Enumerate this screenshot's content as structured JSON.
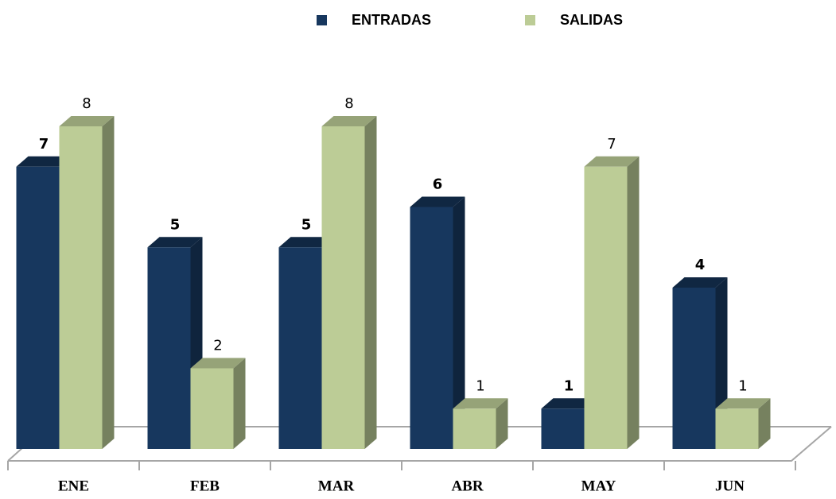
{
  "chart_data": {
    "type": "bar3d",
    "categories": [
      "ENE",
      "FEB",
      "MAR",
      "ABR",
      "MAY",
      "JUN"
    ],
    "series": [
      {
        "name": "ENTRADAS",
        "color": "#17375e",
        "values": [
          7,
          5,
          5,
          6,
          1,
          4
        ]
      },
      {
        "name": "SALIDAS",
        "color": "#bccc96",
        "values": [
          8,
          2,
          8,
          1,
          7,
          1
        ]
      }
    ],
    "ylim": [
      0,
      8
    ],
    "legend": "top"
  }
}
